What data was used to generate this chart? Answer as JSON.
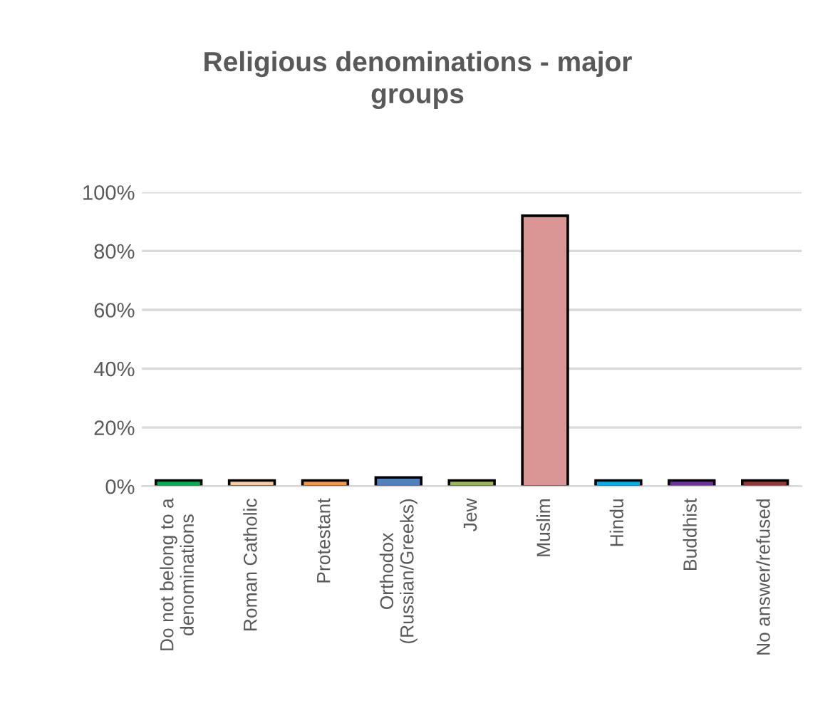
{
  "chart_data": {
    "type": "bar",
    "title": "Religious denominations - major groups",
    "categories": [
      "Do not belong to a denominations",
      "Roman Catholic",
      "Protestant",
      "Orthodox (Russian/Greeks)",
      "Jew",
      "Muslim",
      "Hindu",
      "Buddhist",
      "No answer/refused"
    ],
    "values": [
      2,
      2,
      2,
      3,
      2,
      92,
      2,
      2,
      2
    ],
    "colors": [
      "#00b050",
      "#f8cba0",
      "#f79646",
      "#4f81bd",
      "#9bbb59",
      "#d99694",
      "#00b0f0",
      "#7030a0",
      "#953735"
    ],
    "ylim": [
      0,
      100
    ],
    "yticks": [
      {
        "value": 0,
        "label": "0%"
      },
      {
        "value": 20,
        "label": "20%"
      },
      {
        "value": 40,
        "label": "40%"
      },
      {
        "value": 60,
        "label": "60%"
      },
      {
        "value": 80,
        "label": "80%"
      },
      {
        "value": 100,
        "label": "100%"
      }
    ],
    "grid": "y",
    "legend": false
  }
}
